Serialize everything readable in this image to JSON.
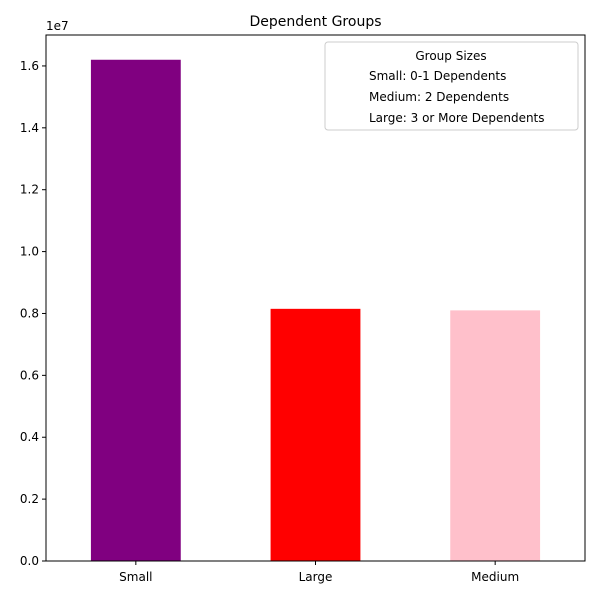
{
  "chart_data": {
    "type": "bar",
    "title": "Dependent Groups",
    "xlabel": "",
    "ylabel": "",
    "categories": [
      "Small",
      "Large",
      "Medium"
    ],
    "values": [
      16200000,
      8150000,
      8100000
    ],
    "colors": [
      "#800080",
      "#ff0000",
      "#ffc0cb"
    ],
    "ylim": [
      0,
      17000000
    ],
    "yticks": [
      0,
      2000000,
      4000000,
      6000000,
      8000000,
      10000000,
      12000000,
      14000000,
      16000000
    ],
    "ytick_labels": [
      "0.0",
      "0.2",
      "0.4",
      "0.6",
      "0.8",
      "1.0",
      "1.2",
      "1.4",
      "1.6"
    ],
    "y_offset_label": "1e7",
    "grid": false,
    "legend": {
      "title": "Group Sizes",
      "position": "top-right",
      "entries": [
        "Small: 0-1 Dependents",
        "Medium: 2 Dependents",
        "Large: 3 or More Dependents"
      ]
    }
  }
}
